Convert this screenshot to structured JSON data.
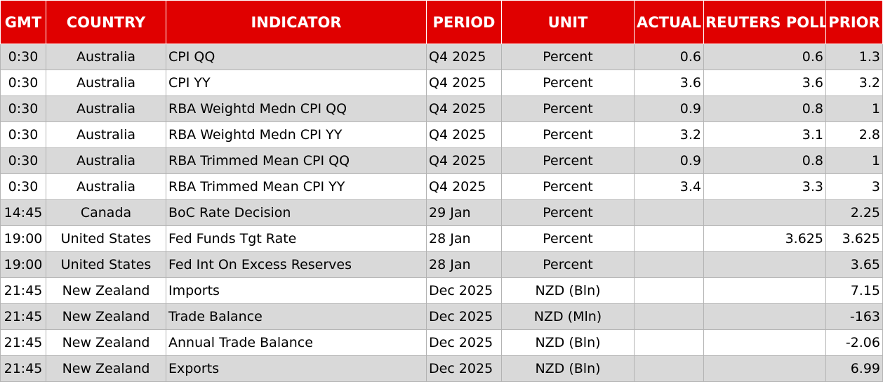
{
  "header": {
    "gmt": "GMT",
    "country": "COUNTRY",
    "indicator": "INDICATOR",
    "period": "PERIOD",
    "unit": "UNIT",
    "actual": "ACTUAL",
    "reuters_poll": "REUTERS POLL",
    "prior": "PRIOR"
  },
  "rows": [
    {
      "gmt": "0:30",
      "country": "Australia",
      "indicator": "CPI QQ",
      "period": "Q4 2025",
      "unit": "Percent",
      "actual": "0.6",
      "poll": "0.6",
      "prior": "1.3"
    },
    {
      "gmt": "0:30",
      "country": "Australia",
      "indicator": "CPI YY",
      "period": "Q4 2025",
      "unit": "Percent",
      "actual": "3.6",
      "poll": "3.6",
      "prior": "3.2"
    },
    {
      "gmt": "0:30",
      "country": "Australia",
      "indicator": "RBA Weightd Medn CPI QQ",
      "period": "Q4 2025",
      "unit": "Percent",
      "actual": "0.9",
      "poll": "0.8",
      "prior": "1"
    },
    {
      "gmt": "0:30",
      "country": "Australia",
      "indicator": "RBA Weightd Medn CPI YY",
      "period": "Q4 2025",
      "unit": "Percent",
      "actual": "3.2",
      "poll": "3.1",
      "prior": "2.8"
    },
    {
      "gmt": "0:30",
      "country": "Australia",
      "indicator": "RBA Trimmed Mean CPI QQ",
      "period": "Q4 2025",
      "unit": "Percent",
      "actual": "0.9",
      "poll": "0.8",
      "prior": "1"
    },
    {
      "gmt": "0:30",
      "country": "Australia",
      "indicator": "RBA Trimmed Mean CPI YY",
      "period": "Q4 2025",
      "unit": "Percent",
      "actual": "3.4",
      "poll": "3.3",
      "prior": "3"
    },
    {
      "gmt": "14:45",
      "country": "Canada",
      "indicator": "BoC Rate Decision",
      "period": "29 Jan",
      "unit": "Percent",
      "actual": "",
      "poll": "",
      "prior": "2.25"
    },
    {
      "gmt": "19:00",
      "country": "United States",
      "indicator": "Fed Funds Tgt Rate",
      "period": "28 Jan",
      "unit": "Percent",
      "actual": "",
      "poll": "3.625",
      "prior": "3.625"
    },
    {
      "gmt": "19:00",
      "country": "United States",
      "indicator": "Fed Int On Excess Reserves",
      "period": "28 Jan",
      "unit": "Percent",
      "actual": "",
      "poll": "",
      "prior": "3.65"
    },
    {
      "gmt": "21:45",
      "country": "New Zealand",
      "indicator": "Imports",
      "period": "Dec 2025",
      "unit": "NZD (Bln)",
      "actual": "",
      "poll": "",
      "prior": "7.15"
    },
    {
      "gmt": "21:45",
      "country": "New Zealand",
      "indicator": "Trade Balance",
      "period": "Dec 2025",
      "unit": "NZD (Mln)",
      "actual": "",
      "poll": "",
      "prior": "-163"
    },
    {
      "gmt": "21:45",
      "country": "New Zealand",
      "indicator": "Annual Trade Balance",
      "period": "Dec 2025",
      "unit": "NZD (Bln)",
      "actual": "",
      "poll": "",
      "prior": "-2.06"
    },
    {
      "gmt": "21:45",
      "country": "New Zealand",
      "indicator": "Exports",
      "period": "Dec 2025",
      "unit": "NZD (Bln)",
      "actual": "",
      "poll": "",
      "prior": "6.99"
    }
  ],
  "colors": {
    "header_bg": "#e00000",
    "header_text": "#ffffff",
    "shaded_row": "#d9d9d9",
    "plain_row": "#ffffff",
    "grid": "#b3b3b3"
  }
}
